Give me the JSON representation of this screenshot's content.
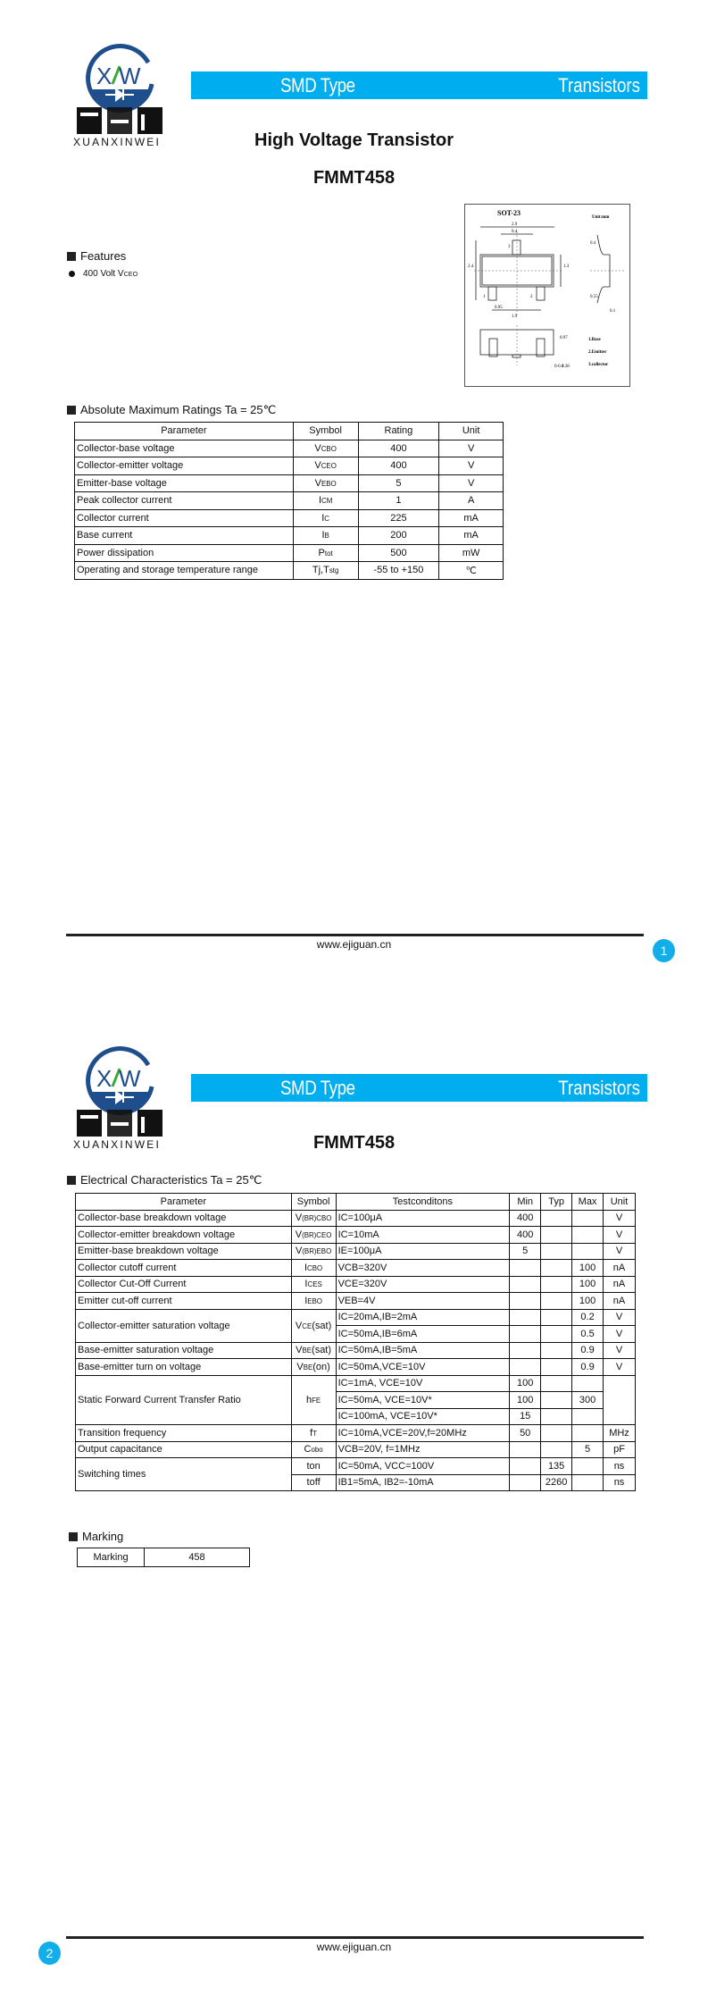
{
  "logo": {
    "letters": "XW",
    "chinese": "烜芯微",
    "name": "XUANXINWEI",
    "colors": {
      "ring": "#1f4e8c",
      "slash": "#3aaa35"
    }
  },
  "header": {
    "left": "SMD Type",
    "right": "Transistors",
    "color": "#00aeef"
  },
  "page1": {
    "subtitle": "High Voltage Transistor",
    "part": "FMMT458",
    "features": {
      "heading": "Features",
      "items": [
        {
          "text": "400 Volt V",
          "sub": "CEO"
        }
      ]
    },
    "package": {
      "name": "SOT-23",
      "unit": "Unit:mm",
      "dims": [
        "2.9",
        "0.4",
        "2.4",
        "1.3",
        "0.95",
        "1.9",
        "0.4",
        "0.55",
        "0.1",
        "0.97",
        "0-0.1",
        "0.38"
      ],
      "pins": [
        "1.Base",
        "2.Emitter",
        "3.collector"
      ],
      "pin_numbers": [
        "1",
        "2",
        "3"
      ]
    },
    "abs_max": {
      "heading": "Absolute Maximum Ratings Ta = 25℃",
      "columns": [
        "Parameter",
        "Symbol",
        "Rating",
        "Unit"
      ],
      "rows": [
        {
          "param": "Collector-base voltage",
          "symbol": [
            "V",
            "CBO"
          ],
          "rating": "400",
          "unit": "V"
        },
        {
          "param": "Collector-emitter voltage",
          "symbol": [
            "V",
            "CEO"
          ],
          "rating": "400",
          "unit": "V"
        },
        {
          "param": "Emitter-base voltage",
          "symbol": [
            "V",
            "EBO"
          ],
          "rating": "5",
          "unit": "V"
        },
        {
          "param": "Peak collector current",
          "symbol": [
            "I",
            "CM"
          ],
          "rating": "1",
          "unit": "A"
        },
        {
          "param": "Collector current",
          "symbol": [
            "I",
            "C"
          ],
          "rating": "225",
          "unit": "mA"
        },
        {
          "param": "Base current",
          "symbol": [
            "I",
            "B"
          ],
          "rating": "200",
          "unit": "mA"
        },
        {
          "param": "Power dissipation",
          "symbol": [
            "P",
            "tot"
          ],
          "rating": "500",
          "unit": "mW"
        },
        {
          "param": "Operating and storage temperature range",
          "symbol": [
            "Tj,T",
            "stg"
          ],
          "rating": "-55 to +150",
          "unit": "℃"
        }
      ]
    },
    "footer": {
      "url": "www.ejiguan.cn",
      "page": "1"
    }
  },
  "page2": {
    "part": "FMMT458",
    "elec": {
      "heading": "Electrical Characteristics Ta = 25℃",
      "columns": [
        "Parameter",
        "Symbol",
        "Testconditons",
        "Min",
        "Typ",
        "Max",
        "Unit"
      ],
      "groups": [
        {
          "param": "Collector-base breakdown voltage",
          "rows": [
            {
              "symbol": [
                "V",
                "(BR)CBO"
              ],
              "cond": "IC=100μA",
              "min": "400",
              "typ": "",
              "max": "",
              "unit": "V"
            }
          ]
        },
        {
          "param": "Collector-emitter breakdown voltage",
          "rows": [
            {
              "symbol": [
                "V",
                "(BR)CEO"
              ],
              "cond": "IC=10mA",
              "min": "400",
              "typ": "",
              "max": "",
              "unit": "V"
            }
          ]
        },
        {
          "param": "Emitter-base breakdown voltage",
          "rows": [
            {
              "symbol": [
                "V",
                "(BR)EBO"
              ],
              "cond": "IE=100μA",
              "min": "5",
              "typ": "",
              "max": "",
              "unit": "V"
            }
          ]
        },
        {
          "param": "Collector cutoff current",
          "rows": [
            {
              "symbol": [
                "I",
                "CBO"
              ],
              "cond": "VCB=320V",
              "min": "",
              "typ": "",
              "max": "100",
              "unit": "nA"
            }
          ]
        },
        {
          "param": "Collector Cut-Off Current",
          "rows": [
            {
              "symbol": [
                "I",
                "CES"
              ],
              "cond": "VCE=320V",
              "min": "",
              "typ": "",
              "max": "100",
              "unit": "nA"
            }
          ]
        },
        {
          "param": "Emitter cut-off current",
          "rows": [
            {
              "symbol": [
                "I",
                "EBO"
              ],
              "cond": "VEB=4V",
              "min": "",
              "typ": "",
              "max": "100",
              "unit": "nA"
            }
          ]
        },
        {
          "param": "Collector-emitter saturation voltage",
          "symbol": [
            "V",
            "CE",
            "(sat)"
          ],
          "rows": [
            {
              "cond": "IC=20mA,IB=2mA",
              "min": "",
              "typ": "",
              "max": "0.2",
              "unit": "V"
            },
            {
              "cond": "IC=50mA,IB=6mA",
              "min": "",
              "typ": "",
              "max": "0.5",
              "unit": "V"
            }
          ]
        },
        {
          "param": "Base-emitter saturation voltage",
          "rows": [
            {
              "symbol": [
                "V",
                "BE",
                "(sat)"
              ],
              "cond": "IC=50mA,IB=5mA",
              "min": "",
              "typ": "",
              "max": "0.9",
              "unit": "V"
            }
          ]
        },
        {
          "param": "Base-emitter turn on voltage",
          "rows": [
            {
              "symbol": [
                "V",
                "BE",
                "(on)"
              ],
              "cond": "IC=50mA,VCE=10V",
              "min": "",
              "typ": "",
              "max": "0.9",
              "unit": "V"
            }
          ]
        },
        {
          "param": "Static Forward Current Transfer Ratio",
          "symbol": [
            "h",
            "FE"
          ],
          "unit": "",
          "rows": [
            {
              "cond": "IC=1mA, VCE=10V",
              "min": "100",
              "typ": "",
              "max": ""
            },
            {
              "cond": "IC=50mA, VCE=10V*",
              "min": "100",
              "typ": "",
              "max": "300"
            },
            {
              "cond": "IC=100mA, VCE=10V*",
              "min": "15",
              "typ": "",
              "max": ""
            }
          ]
        },
        {
          "param": "Transition frequency",
          "rows": [
            {
              "symbol": [
                "f",
                "T"
              ],
              "cond": "IC=10mA,VCE=20V,f=20MHz",
              "min": "50",
              "typ": "",
              "max": "",
              "unit": "MHz"
            }
          ]
        },
        {
          "param": "Output capacitance",
          "rows": [
            {
              "symbol": [
                "C",
                "obo"
              ],
              "cond": "VCB=20V, f=1MHz",
              "min": "",
              "typ": "",
              "max": "5",
              "unit": "pF"
            }
          ]
        },
        {
          "param": "Switching times",
          "rows": [
            {
              "symbol": [
                "ton"
              ],
              "cond": "IC=50mA, VCC=100V",
              "min": "",
              "typ": "135",
              "max": "",
              "unit": "ns"
            },
            {
              "symbol": [
                "toff"
              ],
              "cond": "IB1=5mA, IB2=-10mA",
              "min": "",
              "typ": "2260",
              "max": "",
              "unit": "ns"
            }
          ]
        }
      ]
    },
    "marking": {
      "heading": "Marking",
      "label": "Marking",
      "value": "458"
    },
    "footer": {
      "url": "www.ejiguan.cn",
      "page": "2"
    }
  }
}
